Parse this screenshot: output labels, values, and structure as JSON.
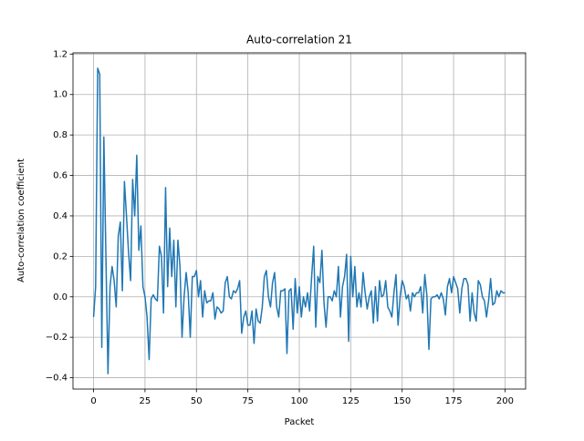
{
  "chart_data": {
    "type": "line",
    "title": "Auto-correlation 21",
    "xlabel": "Packet",
    "ylabel": "Auto-correlation coefficient",
    "x": [
      0,
      1,
      2,
      3,
      4,
      5,
      6,
      7,
      8,
      9,
      10,
      11,
      12,
      13,
      14,
      15,
      16,
      17,
      18,
      19,
      20,
      21,
      22,
      23,
      24,
      25,
      26,
      27,
      28,
      29,
      30,
      31,
      32,
      33,
      34,
      35,
      36,
      37,
      38,
      39,
      40,
      41,
      42,
      43,
      44,
      45,
      46,
      47,
      48,
      49,
      50,
      51,
      52,
      53,
      54,
      55,
      56,
      57,
      58,
      59,
      60,
      61,
      62,
      63,
      64,
      65,
      66,
      67,
      68,
      69,
      70,
      71,
      72,
      73,
      74,
      75,
      76,
      77,
      78,
      79,
      80,
      81,
      82,
      83,
      84,
      85,
      86,
      87,
      88,
      89,
      90,
      91,
      92,
      93,
      94,
      95,
      96,
      97,
      98,
      99,
      100,
      101,
      102,
      103,
      104,
      105,
      106,
      107,
      108,
      109,
      110,
      111,
      112,
      113,
      114,
      115,
      116,
      117,
      118,
      119,
      120,
      121,
      122,
      123,
      124,
      125,
      126,
      127,
      128,
      129,
      130,
      131,
      132,
      133,
      134,
      135,
      136,
      137,
      138,
      139,
      140,
      141,
      142,
      143,
      144,
      145,
      146,
      147,
      148,
      149,
      150,
      151,
      152,
      153,
      154,
      155,
      156,
      157,
      158,
      159,
      160,
      161,
      162,
      163,
      164,
      165,
      166,
      167,
      168,
      169,
      170,
      171,
      172,
      173,
      174,
      175,
      176,
      177,
      178,
      179,
      180,
      181,
      182,
      183,
      184,
      185,
      186,
      187,
      188,
      189,
      190,
      191,
      192,
      193,
      194,
      195,
      196,
      197,
      198,
      199,
      200
    ],
    "series": [
      {
        "name": "Auto-correlation",
        "color": "#1f77b4",
        "values": [
          -0.1,
          0.05,
          1.13,
          1.1,
          -0.25,
          0.79,
          0.2,
          -0.38,
          0.05,
          0.15,
          0.08,
          -0.05,
          0.3,
          0.37,
          0.03,
          0.57,
          0.4,
          0.22,
          0.08,
          0.58,
          0.4,
          0.7,
          0.23,
          0.35,
          0.05,
          0.0,
          -0.1,
          -0.31,
          -0.01,
          0.01,
          -0.01,
          -0.02,
          0.25,
          0.2,
          -0.08,
          0.54,
          0.05,
          0.34,
          0.1,
          0.28,
          -0.05,
          0.28,
          0.15,
          -0.2,
          0.0,
          0.12,
          0.02,
          -0.2,
          0.1,
          0.1,
          0.13,
          0.0,
          0.08,
          -0.1,
          0.03,
          -0.03,
          -0.02,
          -0.02,
          0.02,
          -0.11,
          -0.05,
          -0.06,
          -0.08,
          -0.07,
          0.07,
          0.1,
          0.0,
          -0.01,
          0.03,
          0.02,
          0.04,
          0.08,
          -0.18,
          -0.1,
          -0.07,
          -0.14,
          -0.14,
          -0.07,
          -0.23,
          -0.06,
          -0.12,
          -0.13,
          -0.05,
          0.1,
          0.13,
          0.0,
          -0.05,
          0.07,
          0.12,
          -0.05,
          -0.1,
          0.03,
          0.03,
          0.04,
          -0.28,
          0.03,
          0.04,
          -0.16,
          0.09,
          -0.08,
          0.05,
          -0.1,
          0.0,
          -0.05,
          0.02,
          -0.07,
          0.1,
          0.25,
          -0.15,
          0.1,
          0.07,
          0.23,
          -0.03,
          -0.15,
          0.0,
          0.0,
          -0.02,
          0.03,
          0.0,
          0.15,
          -0.1,
          0.05,
          0.1,
          0.21,
          -0.22,
          0.2,
          0.0,
          0.15,
          -0.05,
          0.02,
          -0.05,
          0.12,
          0.02,
          -0.06,
          0.0,
          0.03,
          -0.13,
          0.05,
          -0.12,
          0.08,
          0.0,
          0.01,
          0.08,
          -0.05,
          -0.07,
          -0.1,
          0.02,
          0.11,
          -0.14,
          0.0,
          0.08,
          0.05,
          -0.01,
          0.01,
          -0.07,
          0.02,
          0.0,
          0.02,
          0.02,
          0.05,
          -0.08,
          0.11,
          0.01,
          -0.26,
          -0.01,
          0.0,
          0.0,
          0.01,
          -0.01,
          0.02,
          -0.01,
          -0.09,
          0.05,
          0.09,
          0.02,
          0.1,
          0.07,
          0.04,
          -0.08,
          0.04,
          0.09,
          0.09,
          0.06,
          -0.12,
          0.02,
          -0.08,
          -0.12,
          0.08,
          0.06,
          0.0,
          -0.02,
          -0.1,
          -0.02,
          0.09,
          -0.04,
          -0.03,
          0.03,
          0.0,
          0.03,
          0.02,
          0.02
        ]
      }
    ],
    "xlim": [
      -10,
      210
    ],
    "xticks": [
      0,
      25,
      50,
      75,
      100,
      125,
      150,
      175,
      200
    ],
    "ylim": [
      -0.456,
      1.206
    ],
    "yticks": [
      {
        "value": -0.4,
        "label": "−0.4"
      },
      {
        "value": -0.2,
        "label": "−0.2"
      },
      {
        "value": 0,
        "label": "0.0"
      },
      0.2,
      0.4,
      0.6,
      0.8,
      {
        "value": 1,
        "label": "1.0"
      },
      1.2
    ],
    "grid": true
  }
}
